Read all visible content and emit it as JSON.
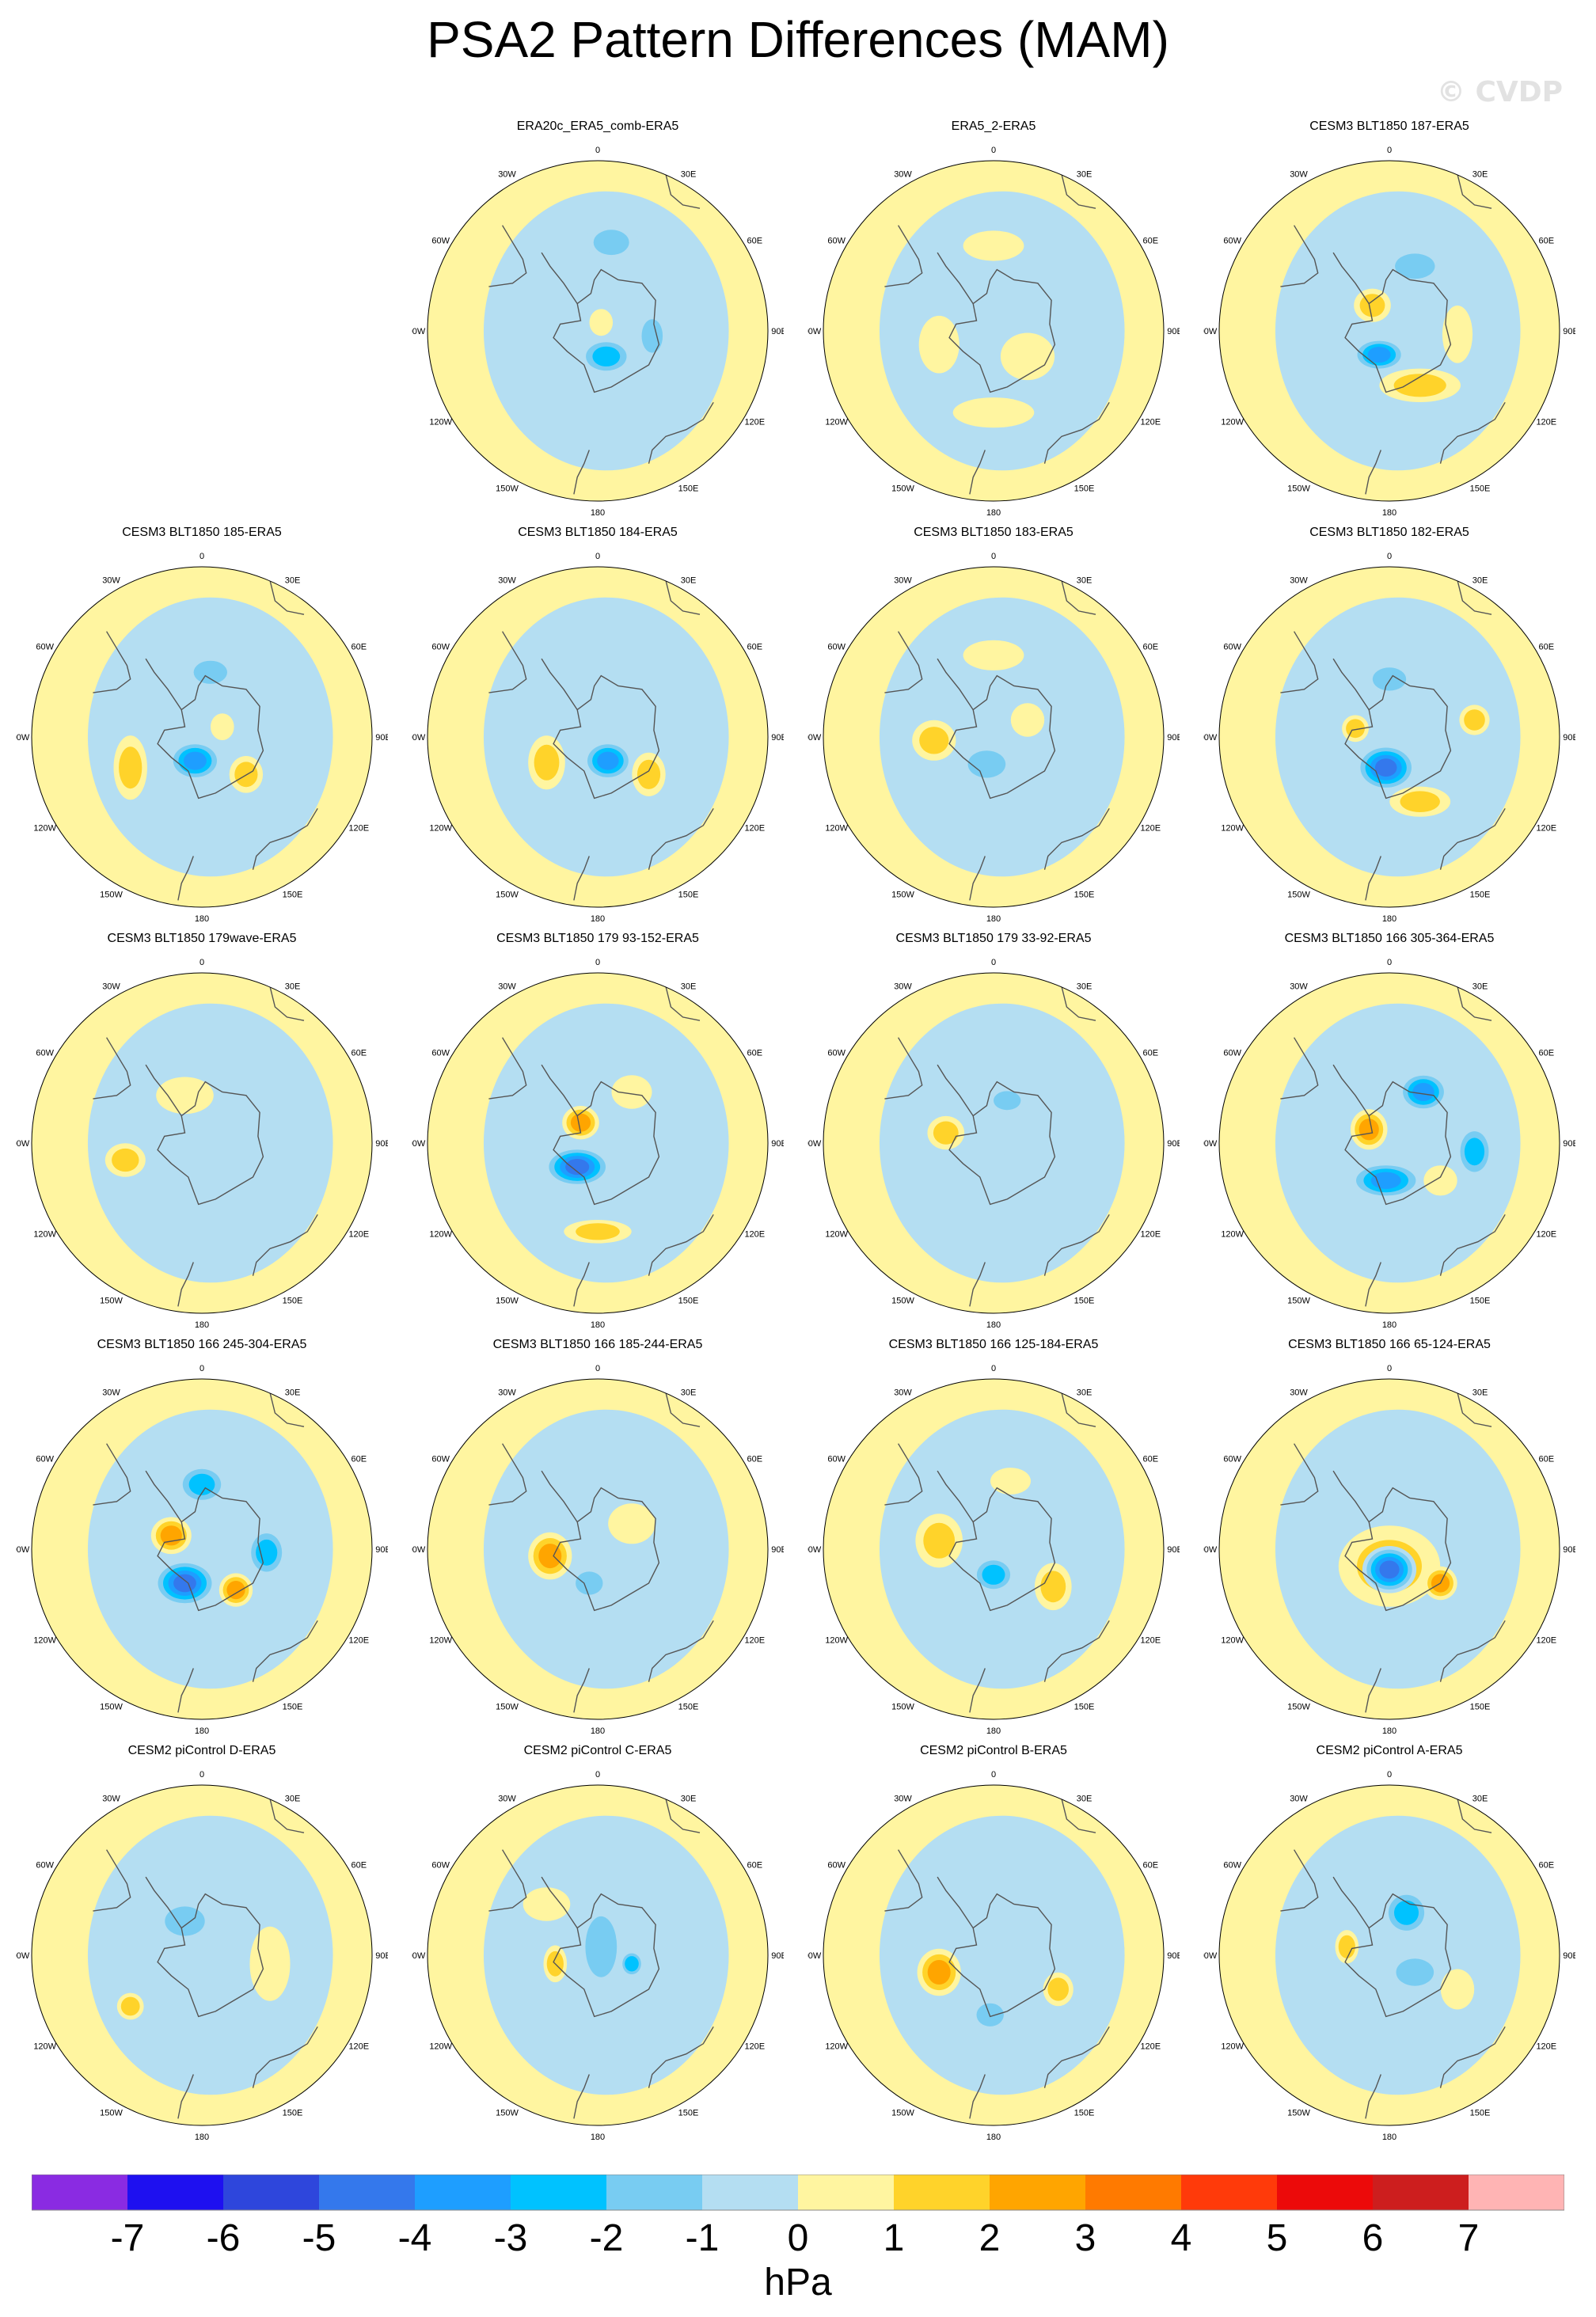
{
  "title": "PSA2 Pattern Differences (MAM)",
  "watermark": "© CVDP",
  "units": "hPa",
  "colorbar": {
    "labels": [
      "-7",
      "-6",
      "-5",
      "-4",
      "-3",
      "-2",
      "-1",
      "0",
      "1",
      "2",
      "3",
      "4",
      "5",
      "6",
      "7"
    ],
    "colors": [
      "#8A2BE2",
      "#1E10F0",
      "#2E46DC",
      "#3478EC",
      "#1E9EFF",
      "#00C2FF",
      "#78CCF2",
      "#B4DEF2",
      "#FFF5A0",
      "#FFD32A",
      "#FFA500",
      "#FF7A00",
      "#FF3A0A",
      "#EC0A0A",
      "#CD1E1E",
      "#FFB4B4"
    ]
  },
  "panels": [
    {
      "title": "ERA20c_ERA5_comb-ERA5",
      "features": [
        [
          0.08,
          -0.52,
          0.14,
          0.09,
          -2
        ],
        [
          0.05,
          0.15,
          0.14,
          0.09,
          -3
        ],
        [
          0.32,
          0.03,
          0.07,
          0.13,
          -2
        ],
        [
          0.02,
          -0.05,
          0.05,
          0.06,
          1
        ]
      ]
    },
    {
      "title": "ERA5_2-ERA5",
      "features": [
        [
          0.0,
          -0.5,
          0.16,
          0.07,
          1
        ],
        [
          -0.32,
          0.08,
          0.1,
          0.15,
          1
        ],
        [
          0.2,
          0.15,
          0.14,
          0.12,
          1
        ],
        [
          0.0,
          0.48,
          0.22,
          0.07,
          1
        ]
      ]
    },
    {
      "title": "CESM3 BLT1850 187-ERA5",
      "features": [
        [
          0.15,
          -0.38,
          0.16,
          0.09,
          -2
        ],
        [
          -0.1,
          -0.15,
          0.09,
          0.08,
          2
        ],
        [
          -0.06,
          0.14,
          0.14,
          0.08,
          -4
        ],
        [
          0.18,
          0.32,
          0.22,
          0.08,
          2
        ],
        [
          0.4,
          0.02,
          0.07,
          0.15,
          1
        ]
      ]
    },
    {
      "title": "CESM3 BLT1850 185-ERA5",
      "features": [
        [
          0.05,
          -0.38,
          0.13,
          0.08,
          -2
        ],
        [
          -0.04,
          0.14,
          0.14,
          0.1,
          -4
        ],
        [
          -0.42,
          0.18,
          0.08,
          0.17,
          2
        ],
        [
          0.26,
          0.22,
          0.08,
          0.09,
          2
        ],
        [
          0.12,
          -0.06,
          0.05,
          0.06,
          1
        ]
      ]
    },
    {
      "title": "CESM3 BLT1850 184-ERA5",
      "features": [
        [
          0.08,
          -0.4,
          0.13,
          0.08,
          -1
        ],
        [
          0.06,
          0.14,
          0.13,
          0.1,
          -4
        ],
        [
          -0.3,
          0.15,
          0.09,
          0.14,
          2
        ],
        [
          0.3,
          0.22,
          0.08,
          0.11,
          2
        ]
      ]
    },
    {
      "title": "CESM3 BLT1850 183-ERA5",
      "features": [
        [
          -0.35,
          0.02,
          0.11,
          0.1,
          2
        ],
        [
          -0.04,
          0.16,
          0.15,
          0.1,
          -2
        ],
        [
          0.2,
          -0.1,
          0.08,
          0.08,
          1
        ],
        [
          0.0,
          -0.48,
          0.16,
          0.07,
          1
        ]
      ]
    },
    {
      "title": "CESM3 BLT1850 182-ERA5",
      "features": [
        [
          0.0,
          -0.34,
          0.13,
          0.08,
          -2
        ],
        [
          -0.02,
          0.18,
          0.16,
          0.12,
          -5
        ],
        [
          0.18,
          0.38,
          0.16,
          0.07,
          2
        ],
        [
          0.5,
          -0.1,
          0.07,
          0.07,
          2
        ],
        [
          -0.2,
          -0.05,
          0.06,
          0.06,
          2
        ]
      ]
    },
    {
      "title": "CESM3 BLT1850 179wave-ERA5",
      "features": [
        [
          -0.45,
          0.1,
          0.1,
          0.08,
          2
        ],
        [
          0.1,
          0.0,
          0.2,
          0.12,
          -1
        ],
        [
          -0.1,
          -0.28,
          0.15,
          0.09,
          1
        ]
      ]
    },
    {
      "title": "CESM3 BLT1850 179 93-152-ERA5",
      "features": [
        [
          -0.1,
          -0.12,
          0.09,
          0.08,
          3
        ],
        [
          -0.12,
          0.14,
          0.18,
          0.1,
          -5
        ],
        [
          0.0,
          0.52,
          0.18,
          0.05,
          2
        ],
        [
          0.2,
          -0.3,
          0.1,
          0.08,
          1
        ]
      ]
    },
    {
      "title": "CESM3 BLT1850 179 33-92-ERA5",
      "features": [
        [
          0.08,
          -0.25,
          0.1,
          0.06,
          -2
        ],
        [
          -0.28,
          -0.06,
          0.09,
          0.08,
          2
        ],
        [
          0.0,
          0.2,
          0.2,
          0.12,
          -1
        ]
      ]
    },
    {
      "title": "CESM3 BLT1850 166 305-364-ERA5",
      "features": [
        [
          0.2,
          -0.3,
          0.13,
          0.1,
          -4
        ],
        [
          -0.12,
          -0.08,
          0.09,
          0.1,
          3
        ],
        [
          0.5,
          0.05,
          0.09,
          0.14,
          -3
        ],
        [
          -0.02,
          0.22,
          0.2,
          0.09,
          -4
        ],
        [
          0.3,
          0.22,
          0.08,
          0.07,
          1
        ]
      ]
    },
    {
      "title": "CESM3 BLT1850 166 245-304-ERA5",
      "features": [
        [
          0.0,
          -0.38,
          0.13,
          0.1,
          -3
        ],
        [
          -0.18,
          -0.08,
          0.1,
          0.09,
          3
        ],
        [
          0.38,
          0.02,
          0.1,
          0.13,
          -3
        ],
        [
          -0.1,
          0.2,
          0.17,
          0.12,
          -5
        ],
        [
          0.2,
          0.24,
          0.08,
          0.08,
          3
        ]
      ]
    },
    {
      "title": "CESM3 BLT1850 166 185-244-ERA5",
      "features": [
        [
          -0.28,
          0.04,
          0.11,
          0.12,
          3
        ],
        [
          -0.05,
          0.2,
          0.1,
          0.08,
          -2
        ],
        [
          0.2,
          -0.15,
          0.12,
          0.1,
          1
        ],
        [
          -0.1,
          -0.3,
          0.08,
          0.06,
          -1
        ]
      ]
    },
    {
      "title": "CESM3 BLT1850 166 125-184-ERA5",
      "features": [
        [
          -0.32,
          -0.05,
          0.12,
          0.14,
          2
        ],
        [
          0.0,
          0.15,
          0.11,
          0.09,
          -3
        ],
        [
          0.35,
          0.22,
          0.09,
          0.12,
          2
        ],
        [
          0.1,
          -0.4,
          0.1,
          0.06,
          1
        ]
      ]
    },
    {
      "title": "CESM3 BLT1850 166 65-124-ERA5",
      "features": [
        [
          0.0,
          0.1,
          0.28,
          0.22,
          2
        ],
        [
          0.0,
          0.12,
          0.14,
          0.12,
          -5
        ],
        [
          0.05,
          -0.4,
          0.12,
          0.07,
          -1
        ],
        [
          0.3,
          0.2,
          0.08,
          0.08,
          3
        ]
      ]
    },
    {
      "title": "CESM2 piControl D-ERA5",
      "features": [
        [
          -0.1,
          -0.2,
          0.16,
          0.11,
          -2
        ],
        [
          -0.42,
          0.3,
          0.06,
          0.06,
          2
        ],
        [
          0.4,
          0.05,
          0.1,
          0.2,
          1
        ],
        [
          -0.15,
          0.25,
          0.1,
          0.08,
          -1
        ]
      ]
    },
    {
      "title": "CESM2 piControl C-ERA5",
      "features": [
        [
          0.02,
          -0.05,
          0.12,
          0.26,
          -2
        ],
        [
          0.2,
          0.05,
          0.05,
          0.06,
          -3
        ],
        [
          -0.25,
          0.05,
          0.05,
          0.09,
          2
        ],
        [
          -0.3,
          -0.3,
          0.12,
          0.08,
          1
        ]
      ]
    },
    {
      "title": "CESM2 piControl B-ERA5",
      "features": [
        [
          -0.32,
          0.1,
          0.11,
          0.12,
          3
        ],
        [
          -0.02,
          0.35,
          0.1,
          0.08,
          -2
        ],
        [
          0.38,
          0.2,
          0.07,
          0.08,
          2
        ],
        [
          0.1,
          -0.32,
          0.07,
          0.05,
          -1
        ]
      ]
    },
    {
      "title": "CESM2 piControl A-ERA5",
      "features": [
        [
          0.1,
          -0.25,
          0.12,
          0.12,
          -3
        ],
        [
          0.15,
          0.1,
          0.15,
          0.1,
          -2
        ],
        [
          -0.25,
          -0.05,
          0.05,
          0.08,
          2
        ],
        [
          0.4,
          0.2,
          0.08,
          0.1,
          1
        ]
      ]
    }
  ],
  "tick_labels": [
    "0",
    "30E",
    "60E",
    "90E",
    "120E",
    "150E",
    "180",
    "150W",
    "120W",
    "90W",
    "60W",
    "30W"
  ]
}
